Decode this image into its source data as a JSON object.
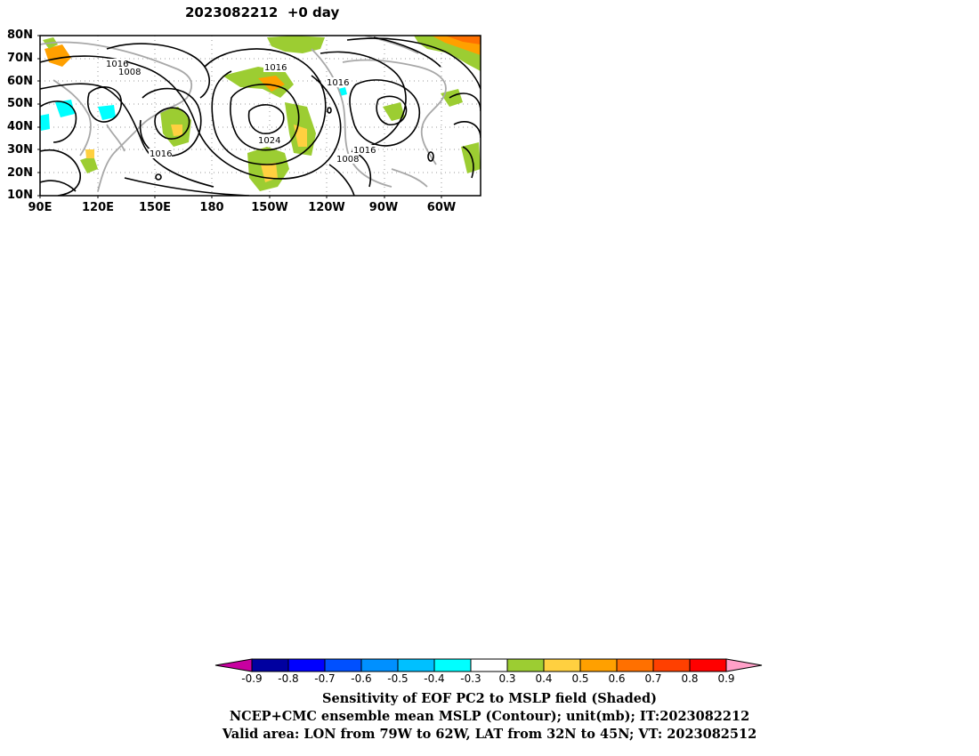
{
  "title": "2023082212  +0 day",
  "map": {
    "y_labels": [
      "80N",
      "70N",
      "60N",
      "50N",
      "40N",
      "30N",
      "20N",
      "10N"
    ],
    "x_labels": [
      "90E",
      "120E",
      "150E",
      "180",
      "150W",
      "120W",
      "90W",
      "60W"
    ],
    "contour_labels": [
      "1016",
      "1008",
      "1016",
      "1016",
      "1016",
      "1024",
      "1016",
      "1008"
    ]
  },
  "colorbar": {
    "ticks": [
      "-0.9",
      "-0.8",
      "-0.7",
      "-0.6",
      "-0.5",
      "-0.4",
      "-0.3",
      "0.3",
      "0.4",
      "0.5",
      "0.6",
      "0.7",
      "0.8",
      "0.9"
    ],
    "colors": [
      "#c800a0",
      "#0000a0",
      "#0000ff",
      "#0050ff",
      "#0090ff",
      "#00c0ff",
      "#00ffff",
      "#ffffff",
      "#9ccd32",
      "#ffd040",
      "#ffa000",
      "#ff7000",
      "#ff4000",
      "#ff0000",
      "#ffa0c8"
    ]
  },
  "captions": [
    "Sensitivity of EOF PC2 to MSLP field (Shaded)",
    "NCEP+CMC ensemble mean MSLP (Contour); unit(mb); IT:2023082212",
    "Valid area: LON from 79W to 62W, LAT from 32N to 45N; VT: 2023082512"
  ]
}
